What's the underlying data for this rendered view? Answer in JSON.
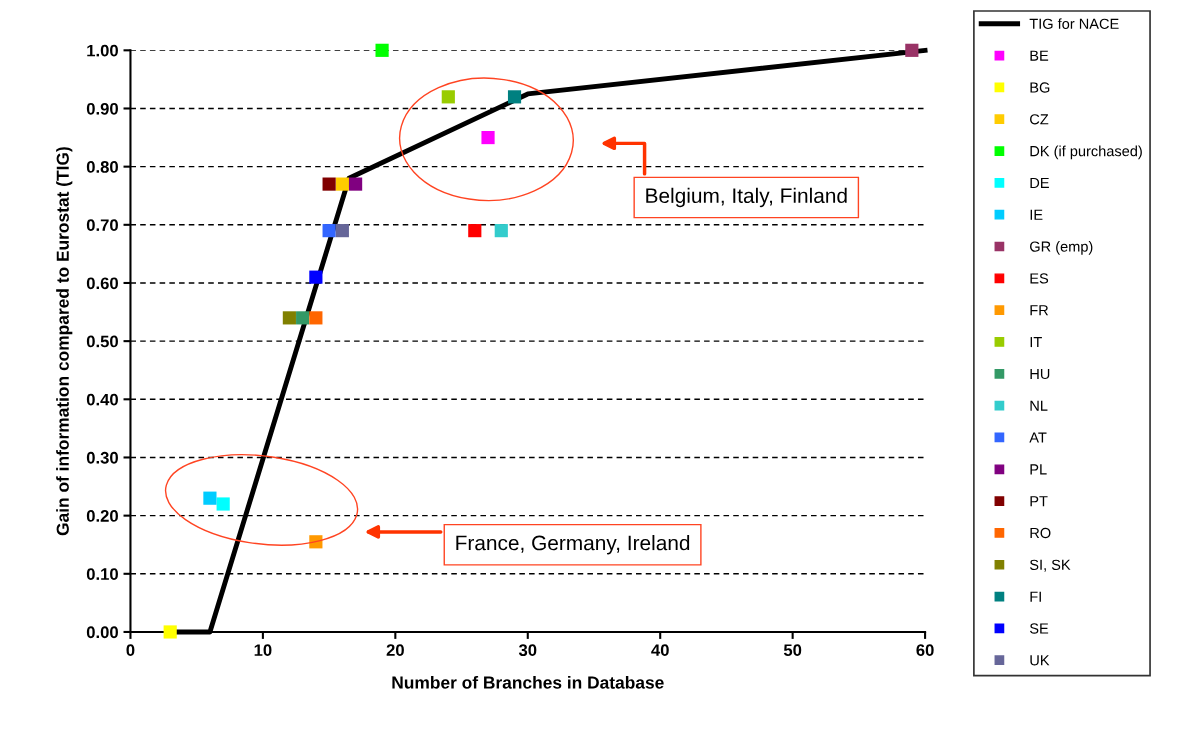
{
  "chart_data": {
    "type": "scatter",
    "xlabel": "Number of Branches in Database",
    "ylabel": "Gain of information compared to Eurostat (TIG)",
    "xlim": [
      0,
      60
    ],
    "xticks": [
      0,
      10,
      20,
      30,
      40,
      50,
      60
    ],
    "ylim": [
      0,
      1.0
    ],
    "yticks": [
      {
        "value": 0,
        "label": "0.00"
      },
      {
        "value": 0.1,
        "label": "0.10"
      },
      {
        "value": 0.2,
        "label": "0.20"
      },
      {
        "value": 0.3,
        "label": "0.30"
      },
      {
        "value": 0.4,
        "label": "0.40"
      },
      {
        "value": 0.5,
        "label": "0.50"
      },
      {
        "value": 0.6,
        "label": "0.60"
      },
      {
        "value": 0.7,
        "label": "0.70"
      },
      {
        "value": 0.8,
        "label": "0.80"
      },
      {
        "value": 0.9,
        "label": "0.90"
      },
      {
        "value": 1.0,
        "label": "1.00"
      }
    ],
    "grid": "y",
    "legend": "right",
    "marker": "square",
    "series": [
      {
        "name": "TIG for NACE",
        "type": "line",
        "marker": "none",
        "line_style": "solid",
        "color": "#000000",
        "x": [
          3,
          6,
          16.5,
          30,
          60
        ],
        "values": [
          0,
          0,
          0.78,
          0.925,
          1.0
        ]
      },
      {
        "name": "BE",
        "color": "#ff00ff",
        "x": [
          27
        ],
        "values": [
          0.85
        ]
      },
      {
        "name": "BG",
        "color": "#ffff00",
        "x": [
          3
        ],
        "values": [
          0
        ]
      },
      {
        "name": "CZ",
        "color": "#ffcc00",
        "x": [
          16
        ],
        "values": [
          0.77
        ]
      },
      {
        "name": "DK (if purchased)",
        "color": "#00ff00",
        "x": [
          19
        ],
        "values": [
          1.0
        ]
      },
      {
        "name": "DE",
        "color": "#00ffff",
        "x": [
          7
        ],
        "values": [
          0.22
        ]
      },
      {
        "name": "IE",
        "color": "#00ccff",
        "x": [
          6
        ],
        "values": [
          0.23
        ]
      },
      {
        "name": "GR (emp)",
        "color": "#993366",
        "x": [
          59
        ],
        "values": [
          1.0
        ]
      },
      {
        "name": "ES",
        "color": "#ff0000",
        "x": [
          26
        ],
        "values": [
          0.69
        ]
      },
      {
        "name": "FR",
        "color": "#ff9900",
        "x": [
          14
        ],
        "values": [
          0.155
        ]
      },
      {
        "name": "IT",
        "color": "#99cc00",
        "x": [
          24
        ],
        "values": [
          0.92
        ]
      },
      {
        "name": "HU",
        "color": "#339966",
        "x": [
          13
        ],
        "values": [
          0.54
        ]
      },
      {
        "name": "NL",
        "color": "#33cccc",
        "x": [
          28
        ],
        "values": [
          0.69
        ]
      },
      {
        "name": "AT",
        "color": "#3366ff",
        "x": [
          15
        ],
        "values": [
          0.69
        ]
      },
      {
        "name": "PL",
        "color": "#800080",
        "x": [
          17
        ],
        "values": [
          0.77
        ]
      },
      {
        "name": "PT",
        "color": "#800000",
        "x": [
          15
        ],
        "values": [
          0.77
        ]
      },
      {
        "name": "RO",
        "color": "#ff6600",
        "x": [
          14
        ],
        "values": [
          0.54
        ]
      },
      {
        "name": "SI, SK",
        "color": "#808000",
        "x": [
          12
        ],
        "values": [
          0.54
        ]
      },
      {
        "name": "FI",
        "color": "#008080",
        "x": [
          29
        ],
        "values": [
          0.92
        ]
      },
      {
        "name": "SE",
        "color": "#0000ff",
        "x": [
          14
        ],
        "values": [
          0.61
        ]
      },
      {
        "name": "UK",
        "color": "#666699",
        "x": [
          16
        ],
        "values": [
          0.69
        ]
      }
    ],
    "annotations": [
      "Belgium, Italy, Finland",
      "France, Germany, Ireland"
    ]
  }
}
